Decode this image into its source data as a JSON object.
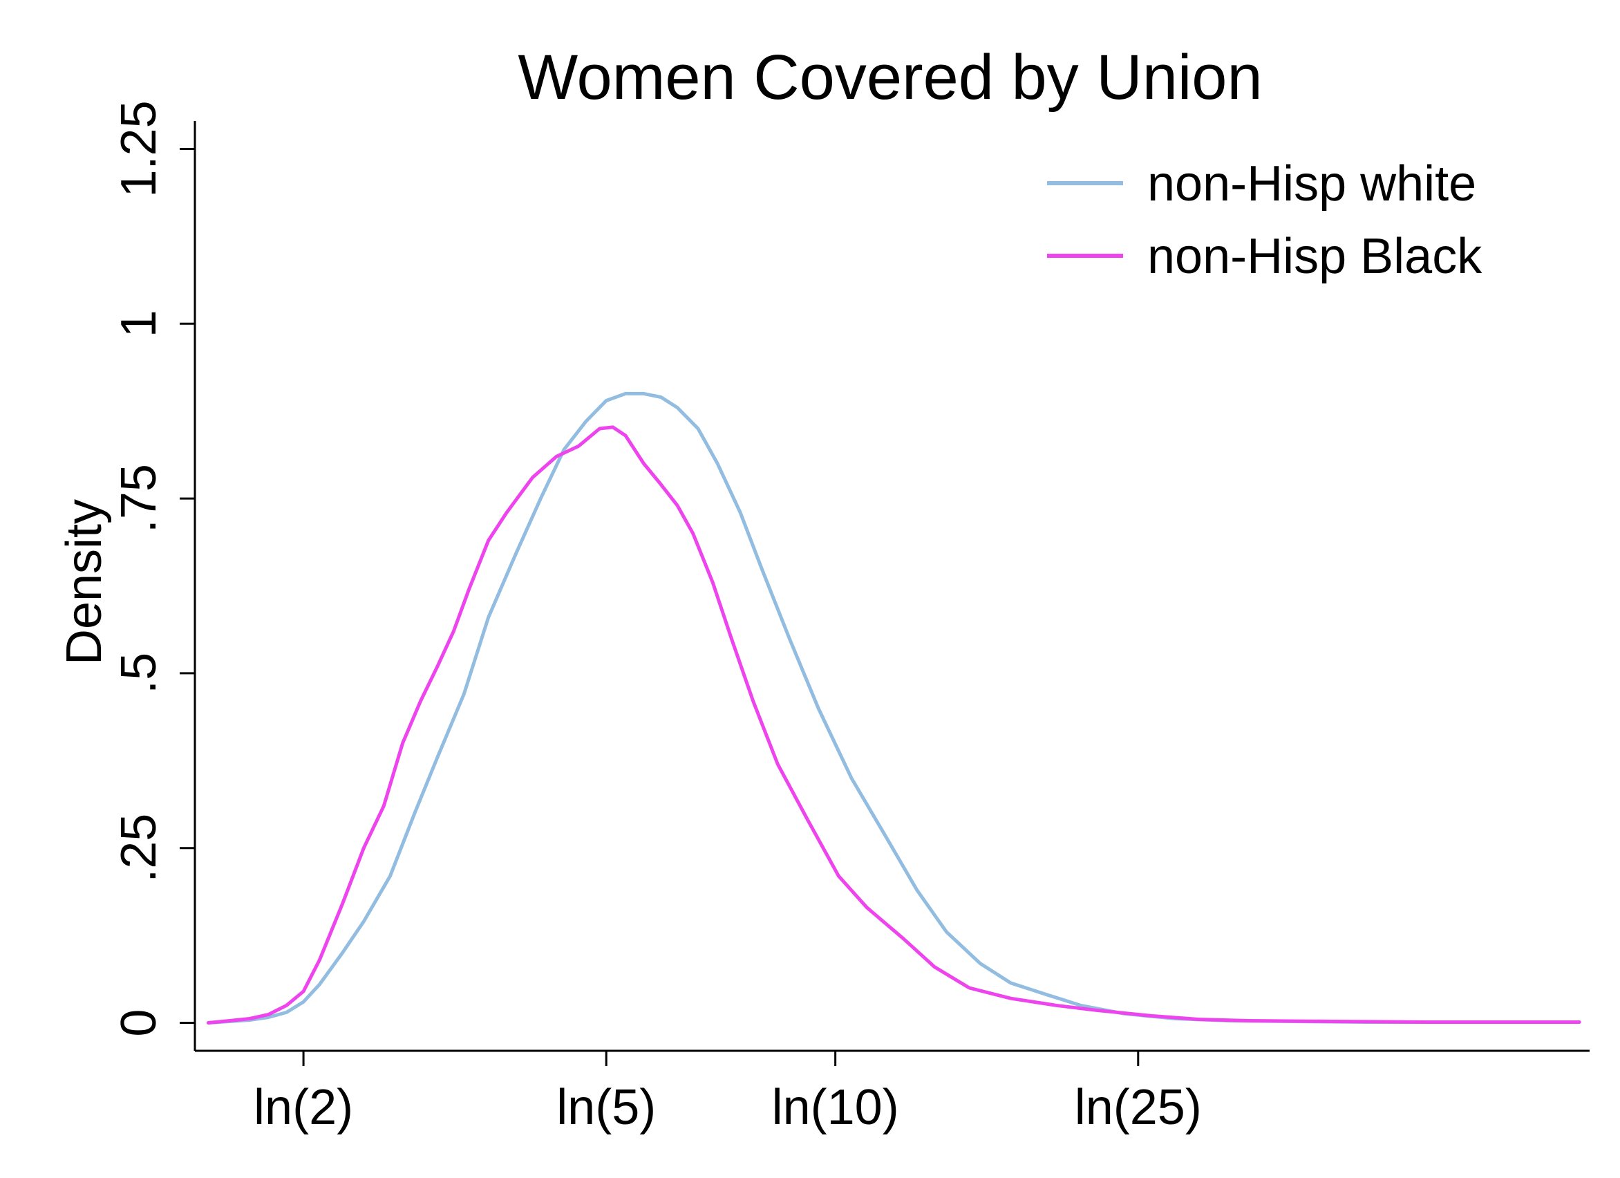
{
  "chart_data": {
    "type": "line",
    "title": "Women Covered by Union",
    "xlabel": "",
    "ylabel": "Density",
    "xscale": "log",
    "xlim": [
      1.44,
      98
    ],
    "ylim": [
      -0.04,
      1.29
    ],
    "x_ticks": [
      {
        "value": 2,
        "label": "ln(2)"
      },
      {
        "value": 5,
        "label": "ln(5)"
      },
      {
        "value": 10,
        "label": "ln(10)"
      },
      {
        "value": 25,
        "label": "ln(25)"
      }
    ],
    "y_ticks": [
      {
        "value": 0,
        "label": "0"
      },
      {
        "value": 0.25,
        "label": ".25"
      },
      {
        "value": 0.5,
        "label": ".5"
      },
      {
        "value": 0.75,
        "label": ".75"
      },
      {
        "value": 1,
        "label": "1"
      },
      {
        "value": 1.25,
        "label": "1.25"
      }
    ],
    "grid": false,
    "legend_position": "top-right",
    "series": [
      {
        "name": "non-Hisp white",
        "color": "#92bde0",
        "points": [
          [
            1.5,
            0.0
          ],
          [
            1.6,
            0.002
          ],
          [
            1.7,
            0.004
          ],
          [
            1.8,
            0.008
          ],
          [
            1.9,
            0.015
          ],
          [
            2.0,
            0.03
          ],
          [
            2.1,
            0.055
          ],
          [
            2.25,
            0.1
          ],
          [
            2.4,
            0.145
          ],
          [
            2.6,
            0.21
          ],
          [
            2.8,
            0.3
          ],
          [
            3.0,
            0.38
          ],
          [
            3.25,
            0.47
          ],
          [
            3.5,
            0.58
          ],
          [
            3.8,
            0.67
          ],
          [
            4.1,
            0.75
          ],
          [
            4.4,
            0.82
          ],
          [
            4.7,
            0.86
          ],
          [
            5.0,
            0.89
          ],
          [
            5.3,
            0.9
          ],
          [
            5.6,
            0.9
          ],
          [
            5.9,
            0.895
          ],
          [
            6.2,
            0.88
          ],
          [
            6.6,
            0.85
          ],
          [
            7.0,
            0.8
          ],
          [
            7.5,
            0.73
          ],
          [
            8.0,
            0.65
          ],
          [
            8.7,
            0.55
          ],
          [
            9.5,
            0.45
          ],
          [
            10.5,
            0.35
          ],
          [
            11.6,
            0.27
          ],
          [
            12.8,
            0.19
          ],
          [
            14.0,
            0.13
          ],
          [
            15.5,
            0.085
          ],
          [
            17.0,
            0.057
          ],
          [
            19.0,
            0.04
          ],
          [
            21.0,
            0.025
          ],
          [
            24.0,
            0.013
          ],
          [
            28.0,
            0.006
          ],
          [
            33.0,
            0.003
          ],
          [
            40.0,
            0.002
          ],
          [
            50.0,
            0.001
          ],
          [
            65.0,
            0.001
          ],
          [
            80.0,
            0.001
          ],
          [
            95.0,
            0.001
          ]
        ]
      },
      {
        "name": "non-Hisp Black",
        "color": "#ee44ee",
        "points": [
          [
            1.5,
            0.0
          ],
          [
            1.6,
            0.003
          ],
          [
            1.7,
            0.006
          ],
          [
            1.8,
            0.012
          ],
          [
            1.9,
            0.025
          ],
          [
            2.0,
            0.045
          ],
          [
            2.1,
            0.09
          ],
          [
            2.25,
            0.17
          ],
          [
            2.4,
            0.25
          ],
          [
            2.55,
            0.31
          ],
          [
            2.7,
            0.4
          ],
          [
            2.85,
            0.46
          ],
          [
            3.0,
            0.51
          ],
          [
            3.15,
            0.56
          ],
          [
            3.3,
            0.62
          ],
          [
            3.5,
            0.69
          ],
          [
            3.7,
            0.73
          ],
          [
            4.0,
            0.78
          ],
          [
            4.3,
            0.81
          ],
          [
            4.6,
            0.825
          ],
          [
            4.9,
            0.85
          ],
          [
            5.1,
            0.852
          ],
          [
            5.3,
            0.84
          ],
          [
            5.6,
            0.8
          ],
          [
            5.9,
            0.77
          ],
          [
            6.2,
            0.74
          ],
          [
            6.5,
            0.7
          ],
          [
            6.9,
            0.63
          ],
          [
            7.3,
            0.55
          ],
          [
            7.8,
            0.46
          ],
          [
            8.4,
            0.37
          ],
          [
            9.2,
            0.29
          ],
          [
            10.1,
            0.21
          ],
          [
            11.0,
            0.165
          ],
          [
            12.3,
            0.12
          ],
          [
            13.5,
            0.08
          ],
          [
            15.0,
            0.05
          ],
          [
            17.0,
            0.035
          ],
          [
            19.5,
            0.025
          ],
          [
            22.0,
            0.018
          ],
          [
            26.0,
            0.01
          ],
          [
            30.0,
            0.005
          ],
          [
            35.0,
            0.003
          ],
          [
            45.0,
            0.002
          ],
          [
            60.0,
            0.001
          ],
          [
            80.0,
            0.001
          ],
          [
            95.0,
            0.001
          ]
        ]
      }
    ]
  }
}
